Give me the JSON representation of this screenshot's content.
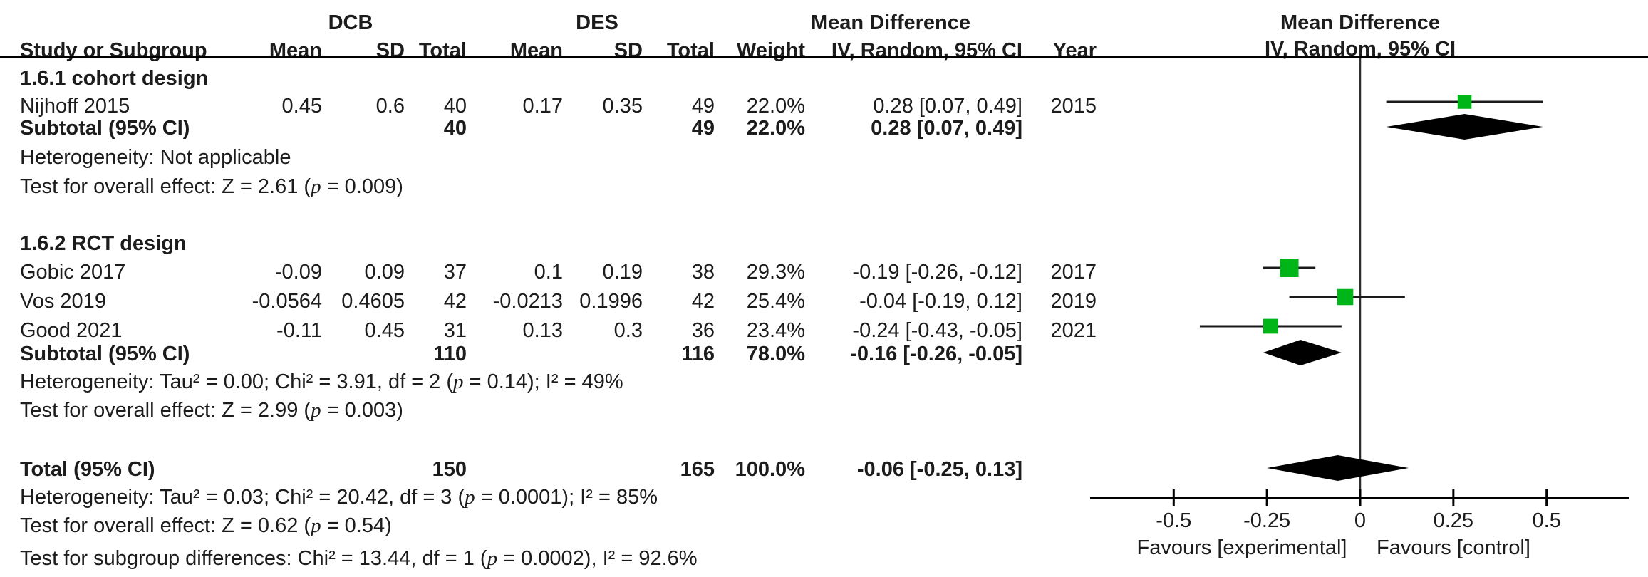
{
  "header": {
    "group_dcb": "DCB",
    "group_des": "DES",
    "group_md": "Mean Difference",
    "cols": {
      "study": "Study or Subgroup",
      "mean": "Mean",
      "sd": "SD",
      "total": "Total",
      "weight": "Weight",
      "ci": "IV, Random, 95% CI",
      "year": "Year"
    },
    "plot_md": "Mean Difference",
    "plot_ci": "IV, Random, 95% CI"
  },
  "rows": [
    {
      "id": "sec1",
      "type": "section",
      "label": "1.6.1 cohort design"
    },
    {
      "id": "nijhoff",
      "type": "study",
      "label": "Nijhoff 2015",
      "mean1": "0.45",
      "sd1": "0.6",
      "total1": "40",
      "mean2": "0.17",
      "sd2": "0.35",
      "total2": "49",
      "weight": "22.0%",
      "ci": "0.28 [0.07, 0.49]",
      "year": "2015"
    },
    {
      "id": "sub1",
      "type": "pooled",
      "label": "Subtotal (95% CI)",
      "total1": "40",
      "total2": "49",
      "weight": "22.0%",
      "ci": "0.28 [0.07, 0.49]"
    },
    {
      "id": "het1",
      "type": "note",
      "segs": [
        {
          "t": "Heterogeneity: Not applicable"
        }
      ]
    },
    {
      "id": "test1",
      "type": "note",
      "segs": [
        {
          "t": "Test for overall effect: Z = 2.61 ("
        },
        {
          "t": "p",
          "i": 1
        },
        {
          "t": " = 0.009)"
        }
      ]
    },
    {
      "id": "sec2",
      "type": "section",
      "label": "1.6.2 RCT design"
    },
    {
      "id": "gobic",
      "type": "study",
      "label": "Gobic 2017",
      "mean1": "-0.09",
      "sd1": "0.09",
      "total1": "37",
      "mean2": "0.1",
      "sd2": "0.19",
      "total2": "38",
      "weight": "29.3%",
      "ci": "-0.19 [-0.26, -0.12]",
      "year": "2017"
    },
    {
      "id": "vos",
      "type": "study",
      "label": "Vos 2019",
      "mean1": "-0.0564",
      "sd1": "0.4605",
      "total1": "42",
      "mean2": "-0.0213",
      "sd2": "0.1996",
      "total2": "42",
      "weight": "25.4%",
      "ci": "-0.04 [-0.19, 0.12]",
      "year": "2019"
    },
    {
      "id": "good",
      "type": "study",
      "label": "Good 2021",
      "mean1": "-0.11",
      "sd1": "0.45",
      "total1": "31",
      "mean2": "0.13",
      "sd2": "0.3",
      "total2": "36",
      "weight": "23.4%",
      "ci": "-0.24 [-0.43, -0.05]",
      "year": "2021"
    },
    {
      "id": "sub2",
      "type": "pooled",
      "label": "Subtotal (95% CI)",
      "total1": "110",
      "total2": "116",
      "weight": "78.0%",
      "ci": "-0.16 [-0.26, -0.05]"
    },
    {
      "id": "het2",
      "type": "note",
      "segs": [
        {
          "t": "Heterogeneity: Tau² = 0.00; Chi² = 3.91, df = 2 ("
        },
        {
          "t": "p",
          "i": 1
        },
        {
          "t": " = 0.14); I² = 49%"
        }
      ]
    },
    {
      "id": "test2",
      "type": "note",
      "segs": [
        {
          "t": "Test for overall effect: Z = 2.99 ("
        },
        {
          "t": "p",
          "i": 1
        },
        {
          "t": " = 0.003)"
        }
      ]
    },
    {
      "id": "total",
      "type": "pooled",
      "label": "Total (95% CI)",
      "total1": "150",
      "total2": "165",
      "weight": "100.0%",
      "ci": "-0.06 [-0.25, 0.13]"
    },
    {
      "id": "het3",
      "type": "note",
      "segs": [
        {
          "t": "Heterogeneity: Tau² = 0.03; Chi² = 20.42, df = 3 ("
        },
        {
          "t": "p",
          "i": 1
        },
        {
          "t": " = 0.0001); I² = 85%"
        }
      ]
    },
    {
      "id": "test3",
      "type": "note",
      "segs": [
        {
          "t": "Test for overall effect: Z = 0.62 ("
        },
        {
          "t": "p",
          "i": 1
        },
        {
          "t": " = 0.54)"
        }
      ]
    },
    {
      "id": "subdiff",
      "type": "note",
      "segs": [
        {
          "t": "Test for subgroup differences: Chi² = 13.44, df = 1 ("
        },
        {
          "t": "p",
          "i": 1
        },
        {
          "t": " = 0.0002), I² = 92.6%"
        }
      ]
    }
  ],
  "chart_data": {
    "type": "forest",
    "effect_measure": "Mean Difference IV, Random, 95% CI",
    "comparison": "DCB vs DES",
    "studies": [
      {
        "row": "nijhoff",
        "name": "Nijhoff 2015",
        "group": "1.6.1 cohort design",
        "est": 0.28,
        "lo": 0.07,
        "hi": 0.49,
        "weight_pct": 22.0,
        "year": 2015
      },
      {
        "row": "gobic",
        "name": "Gobic 2017",
        "group": "1.6.2 RCT design",
        "est": -0.19,
        "lo": -0.26,
        "hi": -0.12,
        "weight_pct": 29.3,
        "year": 2017
      },
      {
        "row": "vos",
        "name": "Vos 2019",
        "group": "1.6.2 RCT design",
        "est": -0.04,
        "lo": -0.19,
        "hi": 0.12,
        "weight_pct": 25.4,
        "year": 2019
      },
      {
        "row": "good",
        "name": "Good 2021",
        "group": "1.6.2 RCT design",
        "est": -0.24,
        "lo": -0.43,
        "hi": -0.05,
        "weight_pct": 23.4,
        "year": 2021
      }
    ],
    "pooled": [
      {
        "row": "sub1",
        "name": "Subtotal 1.6.1 (95% CI)",
        "est": 0.28,
        "lo": 0.07,
        "hi": 0.49
      },
      {
        "row": "sub2",
        "name": "Subtotal 1.6.2 (95% CI)",
        "est": -0.16,
        "lo": -0.26,
        "hi": -0.05
      },
      {
        "row": "total",
        "name": "Total (95% CI)",
        "est": -0.06,
        "lo": -0.25,
        "hi": 0.13
      }
    ],
    "axis": {
      "ticks": [
        -0.5,
        -0.25,
        0,
        0.25,
        0.5
      ],
      "tick_labels": [
        "-0.5",
        "-0.25",
        "0",
        "0.25",
        "0.5"
      ],
      "favours_left": "Favours [experimental]",
      "favours_right": "Favours [control]"
    },
    "colors": {
      "square": "#00b517",
      "diamond": "#000000",
      "line": "#1a1a1a"
    }
  }
}
